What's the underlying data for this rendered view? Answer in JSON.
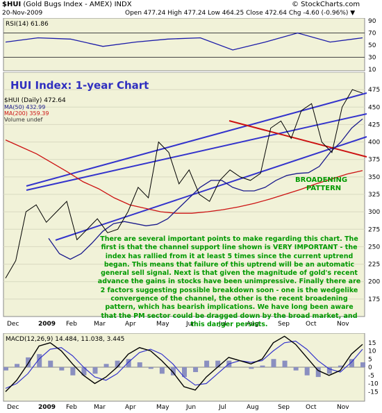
{
  "header": {
    "symbol": "$HUI",
    "name": "(Gold Bugs Index - AMEX) INDX",
    "date": "20-Nov-2009",
    "ohlc_text": "Open 477.24  High 477.24  Low 464.25  Close 472.64  Chg -4.60 (-0.96%) ▼",
    "watermark": "© StockCharts.com"
  },
  "colors": {
    "panel_bg": "#f1f2d8",
    "rsi_line": "#1a1aa8",
    "price_up": "#000000",
    "price_down": "#cc0000",
    "ma50": "#1b1b8c",
    "ma200": "#cc1111",
    "channel": "#3333cc",
    "annotation": "#009900",
    "macd_line": "#000000",
    "macd_signal": "#3333cc",
    "histogram": "#8a8fc0"
  },
  "chart_data": [
    {
      "type": "line",
      "title": "RSI(14) 61.86",
      "series": [
        {
          "name": "RSI(14)",
          "x": [
            "Dec",
            "Jan",
            "Feb",
            "Mar",
            "Apr",
            "May",
            "Jun",
            "Jul",
            "Aug",
            "Sep",
            "Oct",
            "Nov"
          ],
          "values": [
            55,
            62,
            60,
            48,
            55,
            60,
            62,
            42,
            55,
            70,
            55,
            62
          ]
        }
      ],
      "ylim": [
        10,
        90
      ],
      "yticks": [
        90,
        70,
        50,
        30,
        10
      ],
      "guides": [
        70,
        30
      ]
    },
    {
      "type": "line",
      "title": "HUI Index: 1-year Chart",
      "legend": [
        "$HUI (Daily) 472.64",
        "MA(50) 432.99",
        "MA(200) 359.39",
        "Volume undef"
      ],
      "x_labels": [
        "Dec",
        "2009",
        "Feb",
        "Mar",
        "Apr",
        "May",
        "Jun",
        "Jul",
        "Aug",
        "Sep",
        "Oct",
        "Nov"
      ],
      "ylim": [
        150,
        500
      ],
      "yticks": [
        475,
        450,
        425,
        400,
        375,
        350,
        325,
        300,
        275,
        250,
        225,
        200,
        175
      ],
      "series": [
        {
          "name": "$HUI",
          "values": [
            205,
            230,
            300,
            310,
            285,
            300,
            315,
            260,
            275,
            290,
            270,
            275,
            300,
            335,
            320,
            400,
            385,
            340,
            360,
            325,
            315,
            345,
            360,
            350,
            345,
            355,
            420,
            430,
            405,
            445,
            455,
            400,
            385,
            450,
            475,
            470
          ]
        },
        {
          "name": "MA(50)",
          "values": [
            262,
            240,
            232,
            240,
            255,
            272,
            283,
            286,
            283,
            280,
            282,
            290,
            305,
            320,
            335,
            345,
            345,
            335,
            330,
            330,
            335,
            345,
            352,
            355,
            356,
            365,
            385,
            400,
            420,
            433
          ]
        },
        {
          "name": "MA(200)",
          "values": [
            403,
            393,
            383,
            370,
            357,
            343,
            333,
            320,
            310,
            305,
            300,
            298,
            298,
            300,
            303,
            307,
            312,
            318,
            325,
            332,
            340,
            347,
            354,
            359
          ]
        }
      ],
      "annotations": [
        "BROADENING PATTERN"
      ]
    },
    {
      "type": "line",
      "title": "MACD(12,26,9) 14.484, 11.038, 3.445",
      "x_labels": [
        "Dec",
        "2009",
        "Feb",
        "Mar",
        "Apr",
        "May",
        "Jun",
        "Jul",
        "Aug",
        "Sep",
        "Oct",
        "Nov"
      ],
      "ylim": [
        -20,
        20
      ],
      "yticks": [
        15,
        10,
        5,
        0,
        -5,
        -10,
        -15
      ],
      "series": [
        {
          "name": "MACD",
          "values": [
            -15,
            -8,
            2,
            13,
            15,
            10,
            2,
            -5,
            -10,
            -6,
            0,
            8,
            12,
            10,
            4,
            -3,
            -12,
            -14,
            -6,
            0,
            6,
            4,
            2,
            5,
            15,
            19,
            14,
            6,
            -2,
            -5,
            -2,
            8,
            14
          ]
        },
        {
          "name": "Signal",
          "values": [
            -13,
            -10,
            -4,
            5,
            11,
            12,
            7,
            0,
            -6,
            -8,
            -4,
            3,
            9,
            11,
            8,
            2,
            -6,
            -11,
            -10,
            -4,
            2,
            4,
            3,
            4,
            10,
            15,
            16,
            11,
            4,
            -1,
            -3,
            3,
            11
          ]
        },
        {
          "name": "Histogram",
          "values": [
            -2,
            2,
            6,
            8,
            4,
            -2,
            -5,
            -5,
            -4,
            2,
            4,
            5,
            3,
            -1,
            -4,
            -5,
            -6,
            -3,
            4,
            4,
            4,
            0,
            -1,
            1,
            5,
            4,
            -2,
            -5,
            -6,
            -4,
            1,
            5,
            3
          ]
        }
      ]
    }
  ],
  "annotation_text": "There are several important points to make regarding this chart. The first is that the channel support line shown is VERY IMPORTANT - the index has rallied from it at least 5 times since the current uptrend began. This means that failure of this uptrend will be an automatic general sell signal. Next is that given the magnitude of gold's recent advance the gains in stocks have been unimpressive. Finally there are 2 factors suggesting possible breakdown soon - one is the wedgelike convergence of the channel, the other is the recent broadening pattern, which has bearish implications. We have long been aware that the PM sector could be dragged down by the broad market, and this danger persists."
}
